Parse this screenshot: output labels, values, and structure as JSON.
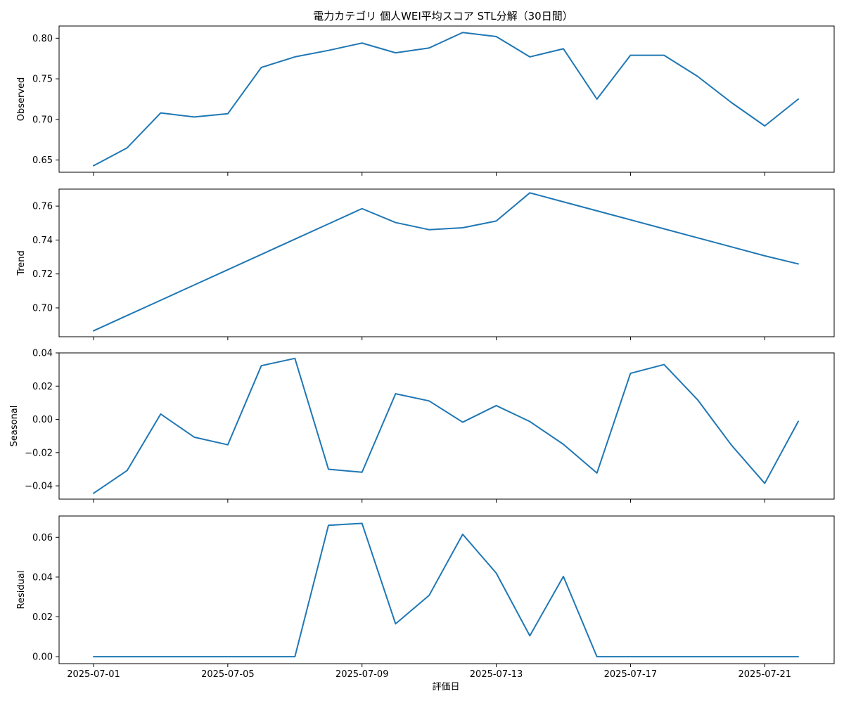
{
  "chart_data": {
    "type": "line",
    "title": "電力カテゴリ 個人WEI平均スコア STL分解（30日間）",
    "xlabel": "評価日",
    "x": [
      "2025-07-01",
      "2025-07-02",
      "2025-07-03",
      "2025-07-04",
      "2025-07-05",
      "2025-07-06",
      "2025-07-07",
      "2025-07-08",
      "2025-07-09",
      "2025-07-10",
      "2025-07-11",
      "2025-07-12",
      "2025-07-13",
      "2025-07-14",
      "2025-07-15",
      "2025-07-16",
      "2025-07-17",
      "2025-07-18",
      "2025-07-19",
      "2025-07-20",
      "2025-07-21",
      "2025-07-22"
    ],
    "xticks": [
      "2025-07-01",
      "2025-07-05",
      "2025-07-09",
      "2025-07-13",
      "2025-07-17",
      "2025-07-21"
    ],
    "line_color": "#1f77b4",
    "grid": false,
    "panels": [
      {
        "ylabel": "Observed",
        "ylim": [
          0.635,
          0.815
        ],
        "yticks": [
          "0.65",
          "0.70",
          "0.75",
          "0.80"
        ],
        "values": [
          0.643,
          0.665,
          0.708,
          0.703,
          0.707,
          0.764,
          0.777,
          0.785,
          0.794,
          0.782,
          0.788,
          0.807,
          0.802,
          0.777,
          0.787,
          0.725,
          0.779,
          0.779,
          0.753,
          0.721,
          0.692,
          0.725
        ]
      },
      {
        "ylabel": "Trend",
        "ylim": [
          0.683,
          0.77
        ],
        "yticks": [
          "0.70",
          "0.72",
          "0.74",
          "0.76"
        ],
        "values": [
          0.6865,
          0.6955,
          0.7045,
          0.7135,
          0.7225,
          0.7315,
          0.7405,
          0.7495,
          0.7585,
          0.7503,
          0.7461,
          0.7472,
          0.7512,
          0.7678,
          0.7625,
          0.7572,
          0.7519,
          0.7466,
          0.7413,
          0.736,
          0.7307,
          0.7259
        ]
      },
      {
        "ylabel": "Seasonal",
        "ylim": [
          -0.048,
          0.04
        ],
        "yticks": [
          "0.04",
          "0.02",
          "0.00",
          "−0.02",
          "−0.04"
        ],
        "values": [
          -0.0445,
          -0.0308,
          0.0032,
          -0.0107,
          -0.0153,
          0.0323,
          0.0367,
          -0.03,
          -0.0318,
          0.0154,
          0.0111,
          -0.0017,
          0.0083,
          -0.0013,
          -0.015,
          -0.0323,
          0.0277,
          0.033,
          0.0118,
          -0.0153,
          -0.0385,
          -0.0012
        ]
      },
      {
        "ylabel": "Residual",
        "ylim": [
          -0.0035,
          0.0707
        ],
        "yticks": [
          "0.00",
          "0.02",
          "0.04",
          "0.06"
        ],
        "values": [
          0,
          0,
          0,
          0,
          0,
          0,
          0,
          0.066,
          0.067,
          0.0165,
          0.0308,
          0.0615,
          0.042,
          0.0105,
          0.0403,
          0,
          0,
          0,
          0,
          0,
          0,
          0
        ]
      }
    ]
  }
}
